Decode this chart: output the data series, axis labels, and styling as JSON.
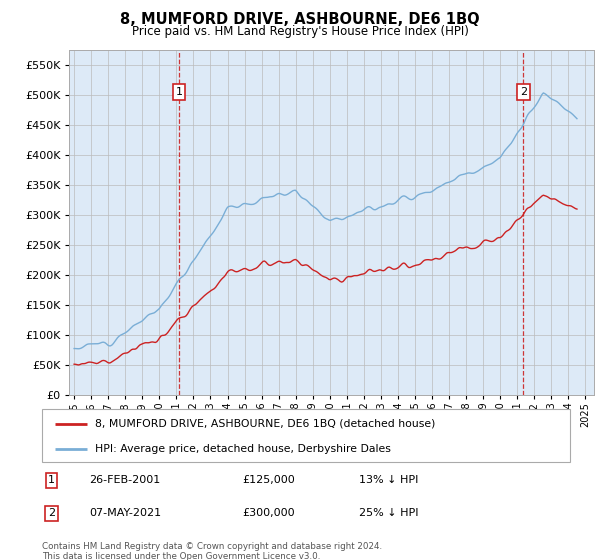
{
  "title": "8, MUMFORD DRIVE, ASHBOURNE, DE6 1BQ",
  "subtitle": "Price paid vs. HM Land Registry's House Price Index (HPI)",
  "legend_line1": "8, MUMFORD DRIVE, ASHBOURNE, DE6 1BQ (detached house)",
  "legend_line2": "HPI: Average price, detached house, Derbyshire Dales",
  "annotation1": {
    "label": "1",
    "date": "26-FEB-2001",
    "price": "£125,000",
    "pct": "13% ↓ HPI"
  },
  "annotation2": {
    "label": "2",
    "date": "07-MAY-2021",
    "price": "£300,000",
    "pct": "25% ↓ HPI"
  },
  "footer": "Contains HM Land Registry data © Crown copyright and database right 2024.\nThis data is licensed under the Open Government Licence v3.0.",
  "sale1_year": 2001.15,
  "sale1_price": 125000,
  "sale2_year": 2021.35,
  "sale2_price": 300000,
  "hpi_color": "#7aaed6",
  "price_color": "#cc2222",
  "vline_color": "#cc2222",
  "bg_color": "#ddeaf7",
  "grid_color": "#bbbbbb",
  "ylim_max": 575000,
  "ytick_step": 50000,
  "xlim_start": 1994.7,
  "xlim_end": 2025.5
}
